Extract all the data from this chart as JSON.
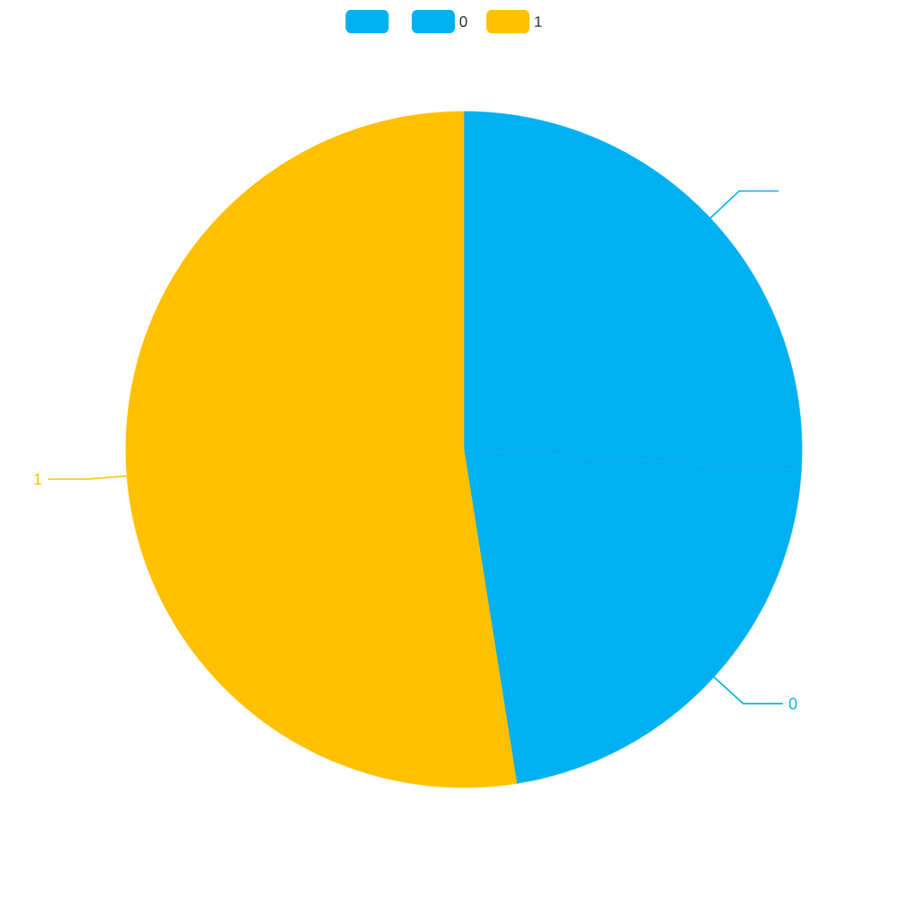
{
  "chart_data": {
    "type": "pie",
    "categories": [
      null,
      "0",
      "1"
    ],
    "values": [
      26,
      21.5,
      52.5
    ],
    "colors": [
      "#00b0f0",
      "#00b0f0",
      "#ffc000"
    ],
    "legend": "top"
  }
}
